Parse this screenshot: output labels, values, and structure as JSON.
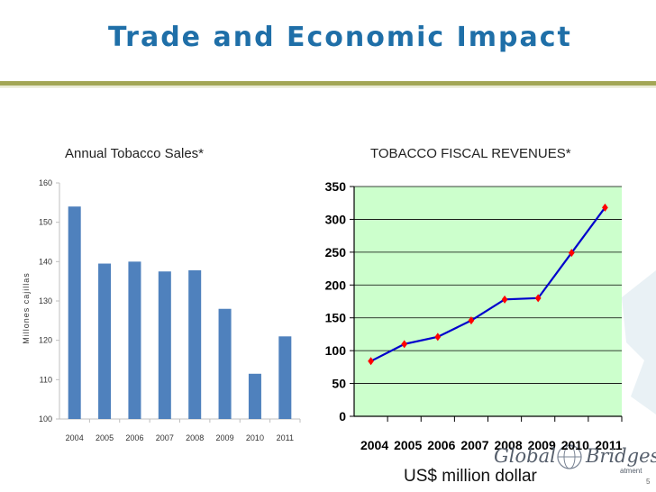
{
  "slide": {
    "title": "Trade and Economic Impact",
    "currency_note": "US$  million dollar",
    "watermark_left": "Global",
    "watermark_right": "Bridges",
    "watermark_small": "atment",
    "page_number": "5"
  },
  "colors": {
    "title": "#1f6fa8",
    "rule": "#a3a655",
    "bar": "#4f81bd",
    "line": "#0000cc",
    "marker": "#ff0000",
    "plot_bg": "#ccffcc"
  },
  "chart_data": [
    {
      "type": "bar",
      "title": "Annual Tobacco Sales*",
      "xlabel": "",
      "ylabel": "Millones cajillas",
      "categories": [
        "2004",
        "2005",
        "2006",
        "2007",
        "2008",
        "2009",
        "2010",
        "2011"
      ],
      "values": [
        154,
        139.5,
        140,
        137.5,
        137.8,
        128,
        111.5,
        121
      ],
      "ylim": [
        100,
        160
      ],
      "yticks": [
        100,
        110,
        120,
        130,
        140,
        150,
        160
      ],
      "grid": false
    },
    {
      "type": "line",
      "title": "TOBACCO FISCAL REVENUES*",
      "xlabel": "",
      "ylabel": "",
      "categories": [
        "2004",
        "2005",
        "2006",
        "2007",
        "2008",
        "2009",
        "2010",
        "2011"
      ],
      "values": [
        84,
        110,
        121,
        146,
        178,
        180,
        249,
        318
      ],
      "ylim": [
        0,
        350
      ],
      "yticks": [
        0,
        50,
        100,
        150,
        200,
        250,
        300,
        350
      ],
      "grid": true
    }
  ]
}
